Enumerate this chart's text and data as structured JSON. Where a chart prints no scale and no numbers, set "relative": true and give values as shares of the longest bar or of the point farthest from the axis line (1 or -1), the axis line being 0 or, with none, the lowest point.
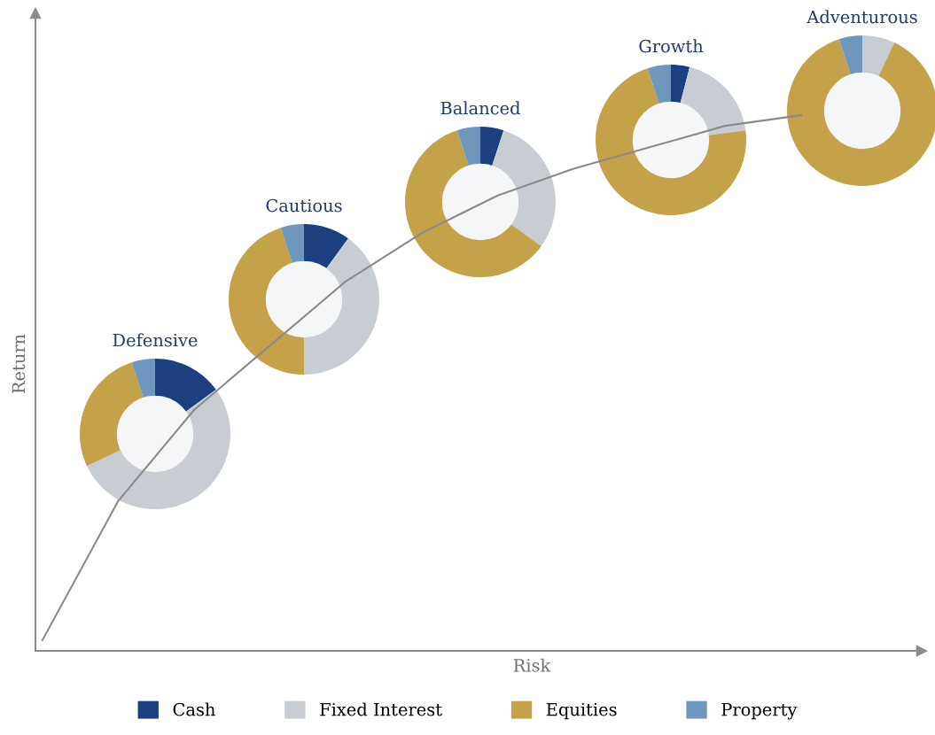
{
  "chart_data": [
    {
      "type": "line",
      "relative": true,
      "xlabel": "Risk",
      "ylabel": "Return",
      "grid": false,
      "marker": "none",
      "line_style": "solid",
      "categories": [
        null,
        null,
        null,
        null,
        null,
        null,
        null,
        null,
        null,
        null,
        null
      ],
      "series": [
        {
          "color": "#8a8a8a",
          "values": [
            0.02,
            0.28,
            0.45,
            0.57,
            0.69,
            0.78,
            0.85,
            0.9,
            0.94,
            0.98,
            1.0
          ]
        }
      ]
    },
    {
      "type": "donut",
      "title": "Defensive",
      "legend": "bottom",
      "categories": [
        "Cash",
        "Fixed Interest",
        "Equities",
        "Property"
      ],
      "values": [
        15,
        53,
        27,
        5
      ],
      "colors": [
        "#1b3f7f",
        "#c8cdd3",
        "#c4a24a",
        "#6f97bd"
      ]
    },
    {
      "type": "donut",
      "title": "Cautious",
      "categories": [
        null,
        null,
        null,
        null
      ],
      "values": [
        10,
        40,
        45,
        5
      ],
      "colors": [
        "#1b3f7f",
        "#c8cdd3",
        "#c4a24a",
        "#6f97bd"
      ]
    },
    {
      "type": "donut",
      "title": "Balanced",
      "categories": [
        null,
        null,
        null,
        null
      ],
      "values": [
        5,
        30,
        60,
        5
      ],
      "colors": [
        "#1b3f7f",
        "#c8cdd3",
        "#c4a24a",
        "#6f97bd"
      ]
    },
    {
      "type": "donut",
      "title": "Growth",
      "categories": [
        null,
        null,
        null,
        null
      ],
      "values": [
        4,
        19,
        72,
        5
      ],
      "colors": [
        "#1b3f7f",
        "#c8cdd3",
        "#c4a24a",
        "#6f97bd"
      ]
    },
    {
      "type": "donut",
      "title": "Adventurous",
      "categories": [
        null,
        null,
        null,
        null
      ],
      "values": [
        0,
        7,
        88,
        5
      ],
      "colors": [
        "#1b3f7f",
        "#c8cdd3",
        "#c4a24a",
        "#6f97bd"
      ]
    }
  ]
}
